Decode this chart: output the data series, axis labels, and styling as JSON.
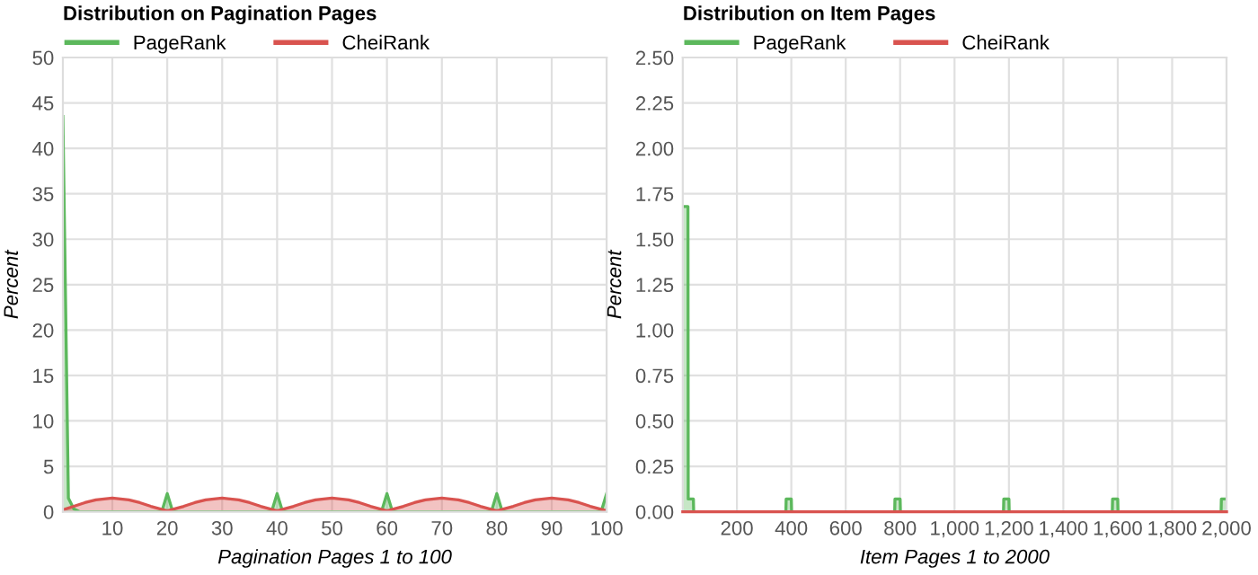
{
  "chart_data": [
    {
      "type": "area",
      "title": "Distribution on Pagination Pages",
      "xlabel": "Pagination Pages 1 to 100",
      "ylabel": "Percent",
      "xlim": [
        1,
        100
      ],
      "xticks": [
        10,
        20,
        30,
        40,
        50,
        60,
        70,
        80,
        90,
        100
      ],
      "ylim": [
        0,
        50
      ],
      "yticks": [
        0,
        5,
        10,
        15,
        20,
        25,
        30,
        35,
        40,
        45,
        50
      ],
      "grid": true,
      "legend": "top left",
      "series": [
        {
          "name": "PageRank",
          "color": "#5cb85c",
          "x": [
            1,
            2,
            3,
            4,
            19,
            20,
            21,
            39,
            40,
            41,
            59,
            60,
            61,
            79,
            80,
            81,
            99,
            100
          ],
          "values": [
            43.5,
            1.5,
            0.3,
            0,
            0,
            2,
            0,
            0,
            2,
            0,
            0,
            2,
            0,
            0,
            2,
            0,
            0,
            2
          ]
        },
        {
          "name": "CheiRank",
          "color": "#d9534f",
          "x": [
            1,
            3,
            5,
            7,
            10,
            13,
            15,
            17,
            20,
            23,
            25,
            27,
            30,
            33,
            35,
            37,
            40,
            43,
            45,
            47,
            50,
            53,
            55,
            57,
            60,
            63,
            65,
            67,
            70,
            73,
            75,
            77,
            80,
            83,
            85,
            87,
            90,
            93,
            95,
            97,
            100
          ],
          "values": [
            0.2,
            0.6,
            1.0,
            1.3,
            1.5,
            1.3,
            1.0,
            0.6,
            0.1,
            0.6,
            1.0,
            1.3,
            1.5,
            1.3,
            1.0,
            0.6,
            0.1,
            0.6,
            1.0,
            1.3,
            1.5,
            1.3,
            1.0,
            0.6,
            0.1,
            0.6,
            1.0,
            1.3,
            1.5,
            1.3,
            1.0,
            0.6,
            0.1,
            0.6,
            1.0,
            1.3,
            1.5,
            1.3,
            1.0,
            0.6,
            0.1
          ]
        }
      ]
    },
    {
      "type": "area",
      "title": "Distribution on Item Pages",
      "xlabel": "Item Pages 1 to 2000",
      "ylabel": "Percent",
      "xlim": [
        1,
        2000
      ],
      "xticks": [
        200,
        400,
        600,
        800,
        {
          "value": 1000,
          "label": "1,000"
        },
        {
          "value": 1200,
          "label": "1,200"
        },
        {
          "value": 1400,
          "label": "1,400"
        },
        {
          "value": 1600,
          "label": "1,600"
        },
        {
          "value": 1800,
          "label": "1,800"
        },
        {
          "value": 2000,
          "label": "2,000"
        }
      ],
      "ylim": [
        0,
        2.5
      ],
      "yticks": [
        {
          "value": 0,
          "label": "0.00"
        },
        {
          "value": 0.25,
          "label": "0.25"
        },
        {
          "value": 0.5,
          "label": "0.50"
        },
        {
          "value": 0.75,
          "label": "0.75"
        },
        {
          "value": 1,
          "label": "1.00"
        },
        {
          "value": 1.25,
          "label": "1.25"
        },
        {
          "value": 1.5,
          "label": "1.50"
        },
        {
          "value": 1.75,
          "label": "1.75"
        },
        {
          "value": 2,
          "label": "2.00"
        },
        {
          "value": 2.25,
          "label": "2.25"
        },
        {
          "value": 2.5,
          "label": "2.50"
        }
      ],
      "grid": true,
      "legend": "top left",
      "series": [
        {
          "name": "PageRank",
          "color": "#5cb85c",
          "x": [
            1,
            20,
            21,
            40,
            41,
            380,
            381,
            400,
            401,
            780,
            781,
            800,
            801,
            1180,
            1181,
            1200,
            1201,
            1580,
            1581,
            1600,
            1601,
            1980,
            1981,
            2000
          ],
          "values": [
            1.68,
            1.68,
            0.07,
            0.07,
            0,
            0,
            0.07,
            0.07,
            0,
            0,
            0.07,
            0.07,
            0,
            0,
            0.07,
            0.07,
            0,
            0,
            0.07,
            0.07,
            0,
            0,
            0.07,
            0.07
          ]
        },
        {
          "name": "CheiRank",
          "color": "#d9534f",
          "type": "line",
          "x": [
            1,
            2000
          ],
          "values": [
            0,
            0
          ]
        }
      ]
    }
  ]
}
